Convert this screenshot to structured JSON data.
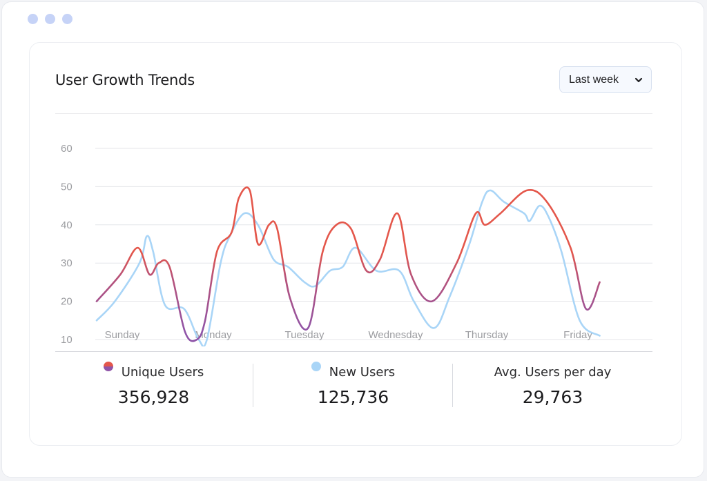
{
  "window_controls": [
    "dot",
    "dot",
    "dot"
  ],
  "card": {
    "title": "User Growth Trends",
    "period_select": {
      "selected": "Last week"
    }
  },
  "stats": [
    {
      "label": "Unique Users",
      "value": "356,928"
    },
    {
      "label": "New Users",
      "value": "125,736"
    },
    {
      "label": "Avg. Users per day",
      "value": "29,763"
    }
  ],
  "colors": {
    "unique_users_top": "#e4574b",
    "unique_users_bottom": "#8f54a8",
    "new_users": "#a9d5f7",
    "grid": "#e4e6ea",
    "tick": "#9b9ca0"
  },
  "chart_data": {
    "type": "line",
    "categories": [
      "Sunday",
      "Monday",
      "Tuesday",
      "Wednesday",
      "Thursday",
      "Friday"
    ],
    "y_ticks": [
      10,
      20,
      30,
      40,
      50,
      60
    ],
    "ylim": [
      10,
      60
    ],
    "grid": true,
    "series": [
      {
        "name": "Unique Users",
        "x": [
          0,
          0.26,
          0.45,
          0.58,
          0.68,
          0.8,
          0.97,
          1.1,
          1.19,
          1.32,
          1.48,
          1.56,
          1.68,
          1.77,
          1.89,
          1.98,
          2.12,
          2.32,
          2.48,
          2.63,
          2.79,
          2.96,
          3.11,
          3.3,
          3.45,
          3.68,
          3.95,
          4.16,
          4.26,
          4.43,
          4.72,
          4.94,
          5.2,
          5.37,
          5.52
        ],
        "values": [
          20,
          27,
          34,
          27,
          30,
          29,
          12,
          10,
          15,
          33,
          38,
          47,
          49,
          35,
          40,
          39,
          21,
          13,
          33,
          40,
          39,
          28,
          31,
          43,
          27,
          20,
          30,
          43,
          40,
          43,
          49,
          46,
          34,
          18,
          25
        ]
      },
      {
        "name": "New Users",
        "x": [
          0,
          0.2,
          0.47,
          0.55,
          0.62,
          0.75,
          0.96,
          1.12,
          1.21,
          1.36,
          1.46,
          1.62,
          1.77,
          1.94,
          2.1,
          2.28,
          2.4,
          2.56,
          2.7,
          2.84,
          3.07,
          3.32,
          3.48,
          3.7,
          3.87,
          4.09,
          4.23,
          4.32,
          4.47,
          4.69,
          4.75,
          4.86,
          4.96,
          5.1,
          5.3,
          5.52
        ],
        "values": [
          15,
          20,
          30,
          37,
          33,
          19,
          18,
          10,
          10,
          30,
          37,
          43,
          40,
          31,
          29,
          25,
          24,
          28,
          29,
          34,
          28,
          28,
          20,
          13,
          21,
          35,
          46,
          49,
          46,
          43,
          41,
          45,
          42,
          33,
          15,
          11
        ]
      }
    ],
    "legend_placement": "below"
  }
}
